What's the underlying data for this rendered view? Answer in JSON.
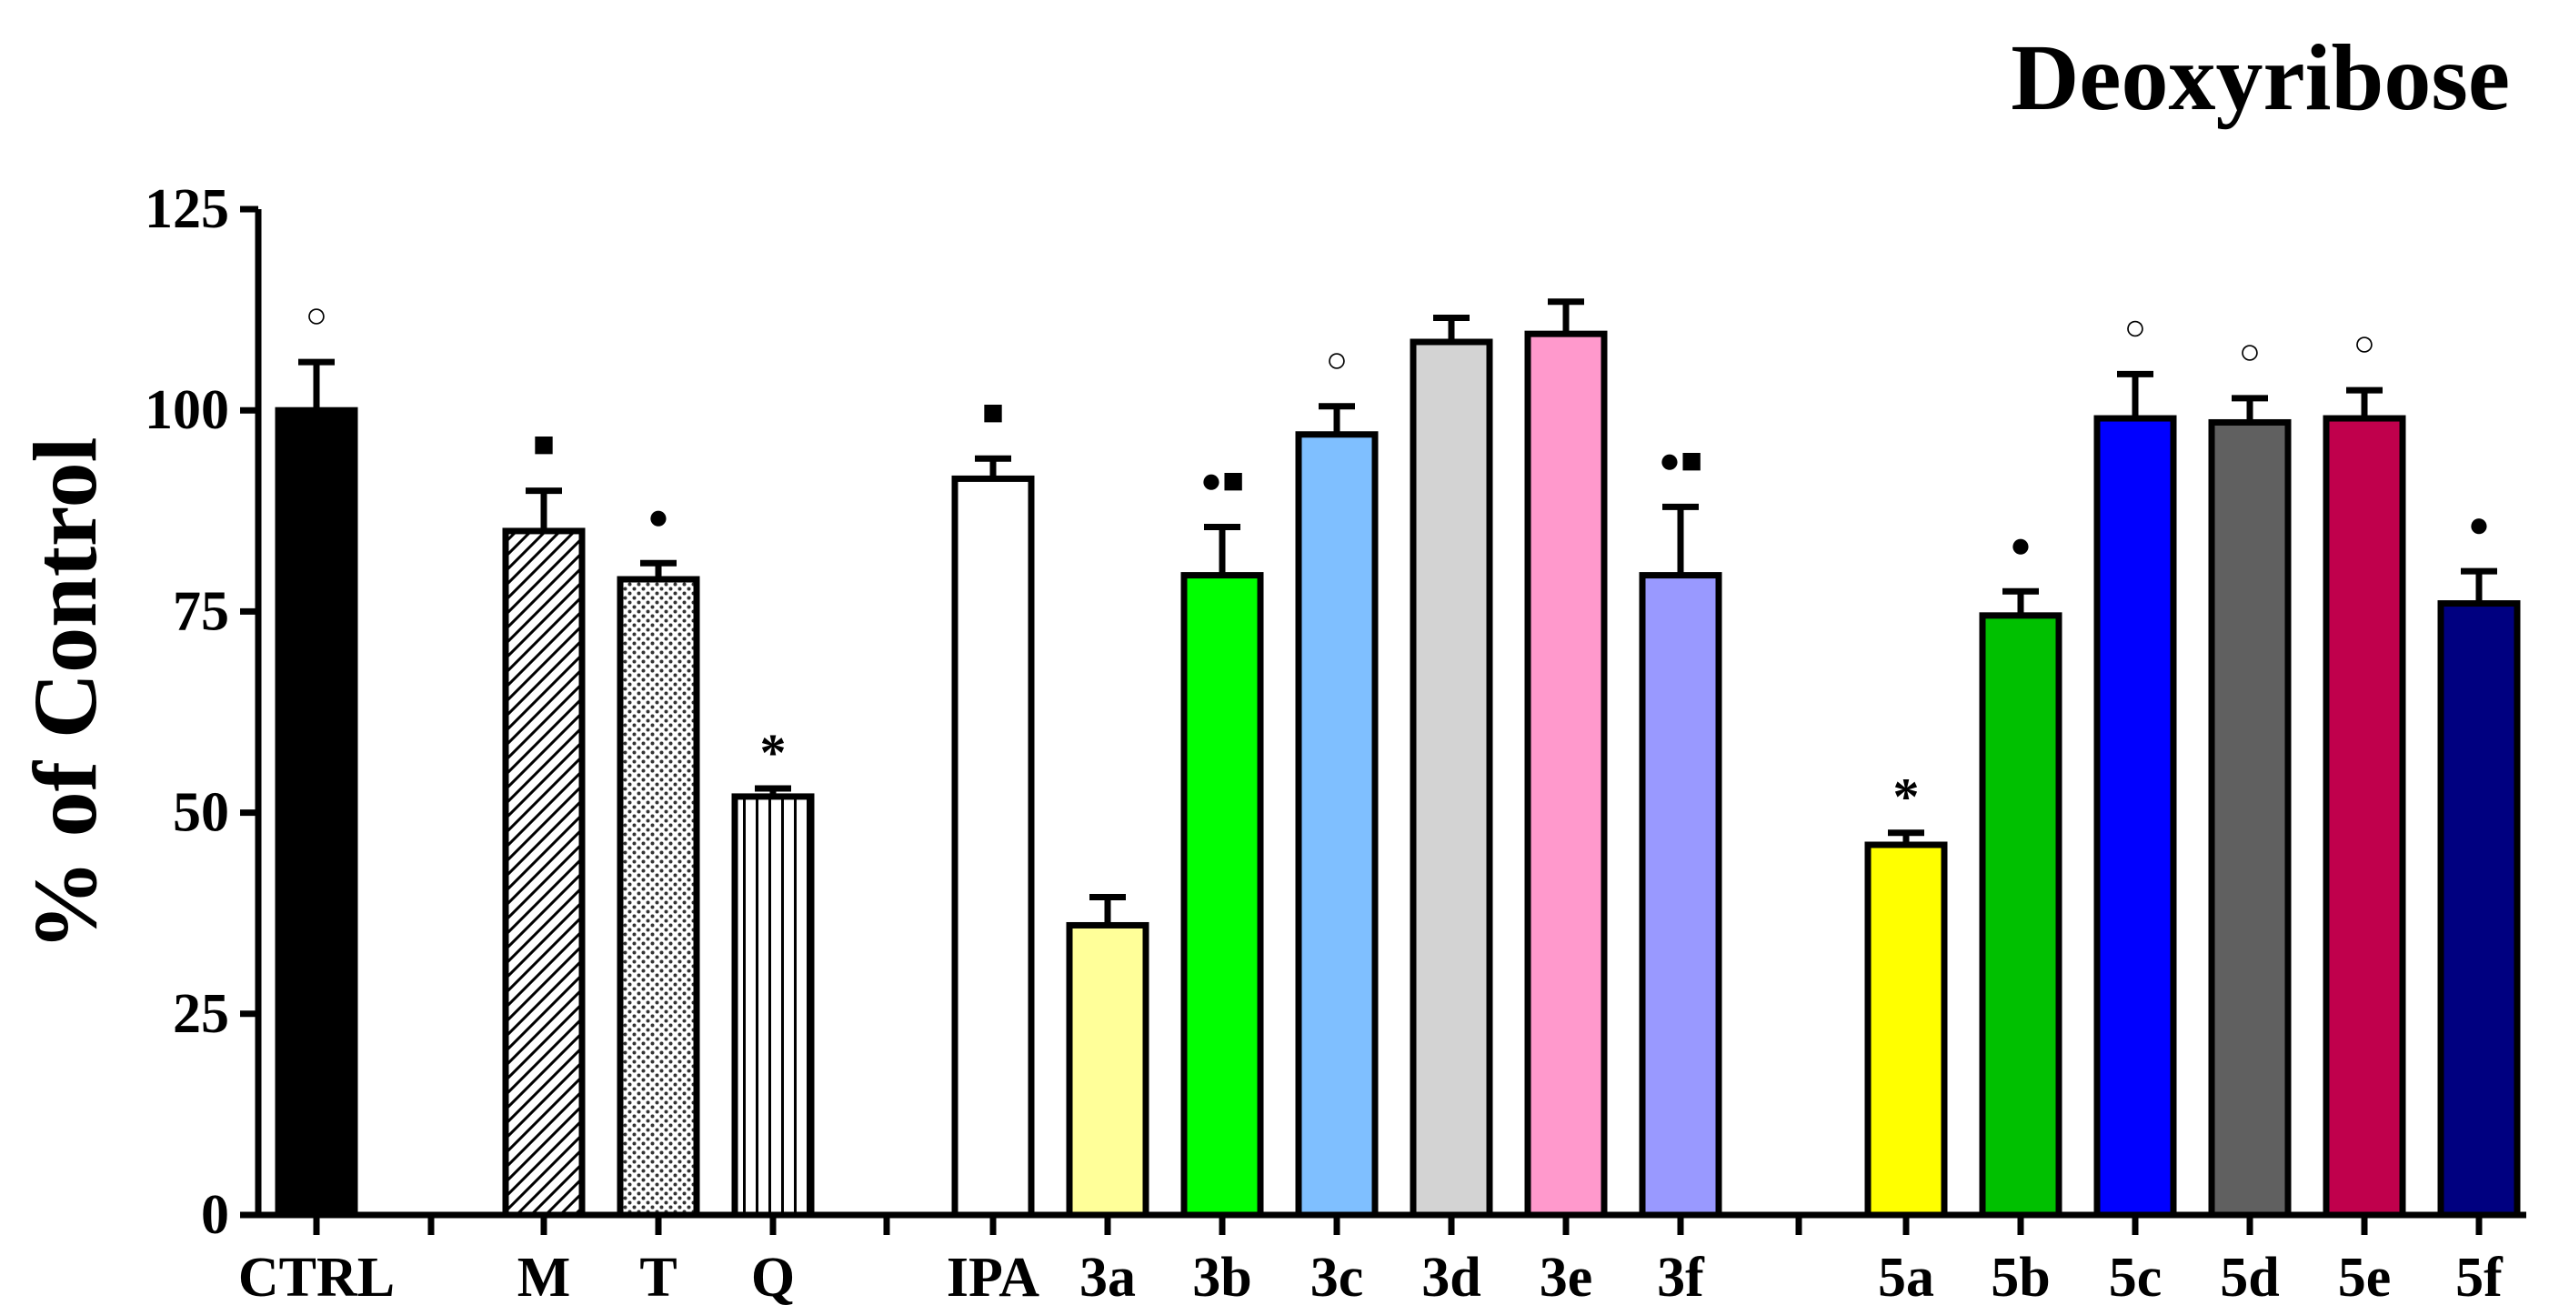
{
  "chart_data": {
    "type": "bar",
    "title": "Deoxyribose",
    "xlabel": "",
    "ylabel": "% of Control",
    "ylim": [
      0,
      125
    ],
    "yticks": [
      0,
      25,
      50,
      75,
      100,
      125
    ],
    "grid": false,
    "legend": "none",
    "groups": [
      [
        "CTRL"
      ],
      [
        "M",
        "T",
        "Q"
      ],
      [
        "IPA",
        "3a",
        "3b",
        "3c",
        "3d",
        "3e",
        "3f"
      ],
      [
        "5a",
        "5b",
        "5c",
        "5d",
        "5e",
        "5f"
      ]
    ],
    "bars": [
      {
        "label": "CTRL",
        "value": 100,
        "error": 6,
        "color": "#000000",
        "pattern": "none",
        "marker": "○"
      },
      {
        "label": "M",
        "value": 85,
        "error": 5,
        "color": "#ffffff",
        "pattern": "diagonal",
        "marker": "■"
      },
      {
        "label": "T",
        "value": 79,
        "error": 2,
        "color": "#ffffff",
        "pattern": "dots",
        "marker": "●"
      },
      {
        "label": "Q",
        "value": 52,
        "error": 1,
        "color": "#ffffff",
        "pattern": "vertical",
        "marker": "*"
      },
      {
        "label": "IPA",
        "value": 91.5,
        "error": 2.5,
        "color": "#ffffff",
        "pattern": "none",
        "marker": "■"
      },
      {
        "label": "3a",
        "value": 36,
        "error": 3.5,
        "color": "#ffff99",
        "pattern": "none",
        "marker": ""
      },
      {
        "label": "3b",
        "value": 79.5,
        "error": 6,
        "color": "#00ff00",
        "pattern": "none",
        "marker": "●■"
      },
      {
        "label": "3c",
        "value": 97,
        "error": 3.5,
        "color": "#7fbfff",
        "pattern": "none",
        "marker": "○"
      },
      {
        "label": "3d",
        "value": 108.5,
        "error": 3,
        "color": "#d3d3d3",
        "pattern": "none",
        "marker": ""
      },
      {
        "label": "3e",
        "value": 109.5,
        "error": 4,
        "color": "#ff99cc",
        "pattern": "none",
        "marker": ""
      },
      {
        "label": "3f",
        "value": 79.5,
        "error": 8.5,
        "color": "#9999ff",
        "pattern": "none",
        "marker": "●■"
      },
      {
        "label": "5a",
        "value": 46,
        "error": 1.5,
        "color": "#ffff00",
        "pattern": "none",
        "marker": "*"
      },
      {
        "label": "5b",
        "value": 74.5,
        "error": 3,
        "color": "#00c000",
        "pattern": "none",
        "marker": "●"
      },
      {
        "label": "5c",
        "value": 99,
        "error": 5.5,
        "color": "#0000ff",
        "pattern": "none",
        "marker": "○"
      },
      {
        "label": "5d",
        "value": 98.5,
        "error": 3,
        "color": "#606060",
        "pattern": "none",
        "marker": "○"
      },
      {
        "label": "5e",
        "value": 99,
        "error": 3.5,
        "color": "#c0004c",
        "pattern": "none",
        "marker": "○"
      },
      {
        "label": "5f",
        "value": 76,
        "error": 4,
        "color": "#000080",
        "pattern": "none",
        "marker": "●"
      }
    ]
  }
}
